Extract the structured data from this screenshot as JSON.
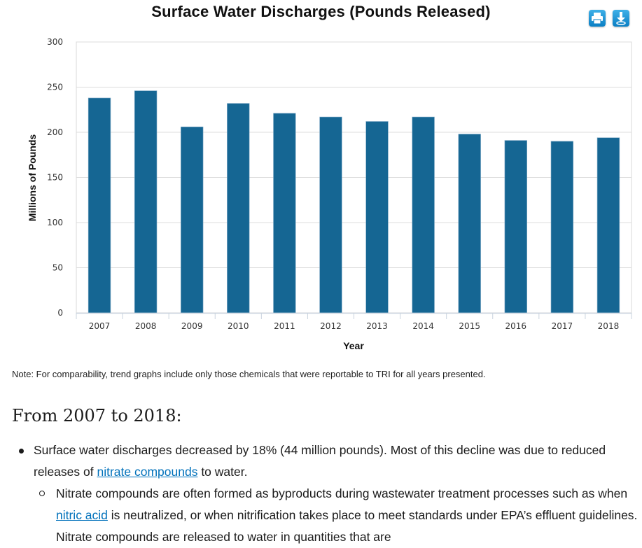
{
  "chart_data": {
    "type": "bar",
    "title": "Surface Water Discharges (Pounds Released)",
    "xlabel": "Year",
    "ylabel": "Millions of Pounds",
    "ylim": [
      0,
      300
    ],
    "yticks": [
      0,
      50,
      100,
      150,
      200,
      250,
      300
    ],
    "categories": [
      "2007",
      "2008",
      "2009",
      "2010",
      "2011",
      "2012",
      "2013",
      "2014",
      "2015",
      "2016",
      "2017",
      "2018"
    ],
    "values": [
      238,
      246,
      206,
      232,
      221,
      217,
      212,
      217,
      198,
      191,
      190,
      194
    ],
    "grid": true,
    "bar_color": "#156693"
  },
  "toolbar": {
    "print_icon": "print-icon",
    "download_icon": "download-icon"
  },
  "note": "Note: For comparability, trend graphs include only those chemicals that were reportable to TRI for all years presented.",
  "section": {
    "heading": "From 2007 to 2018:",
    "bullet1": {
      "text_before": "Surface water discharges decreased by 18% (44 million pounds). Most of this decline was due to reduced releases of ",
      "link": "nitrate compounds",
      "text_after": " to water."
    },
    "bullet2": {
      "text_before": "Nitrate compounds are often formed as byproducts during wastewater treatment processes such as when ",
      "link": "nitric acid",
      "text_after": " is neutralized, or when nitrification takes place to meet standards under EPA’s effluent guidelines. Nitrate compounds are released to water in quantities that are"
    }
  },
  "colors": {
    "link": "#0071bb",
    "icon_blue": "#1a8fd4"
  }
}
